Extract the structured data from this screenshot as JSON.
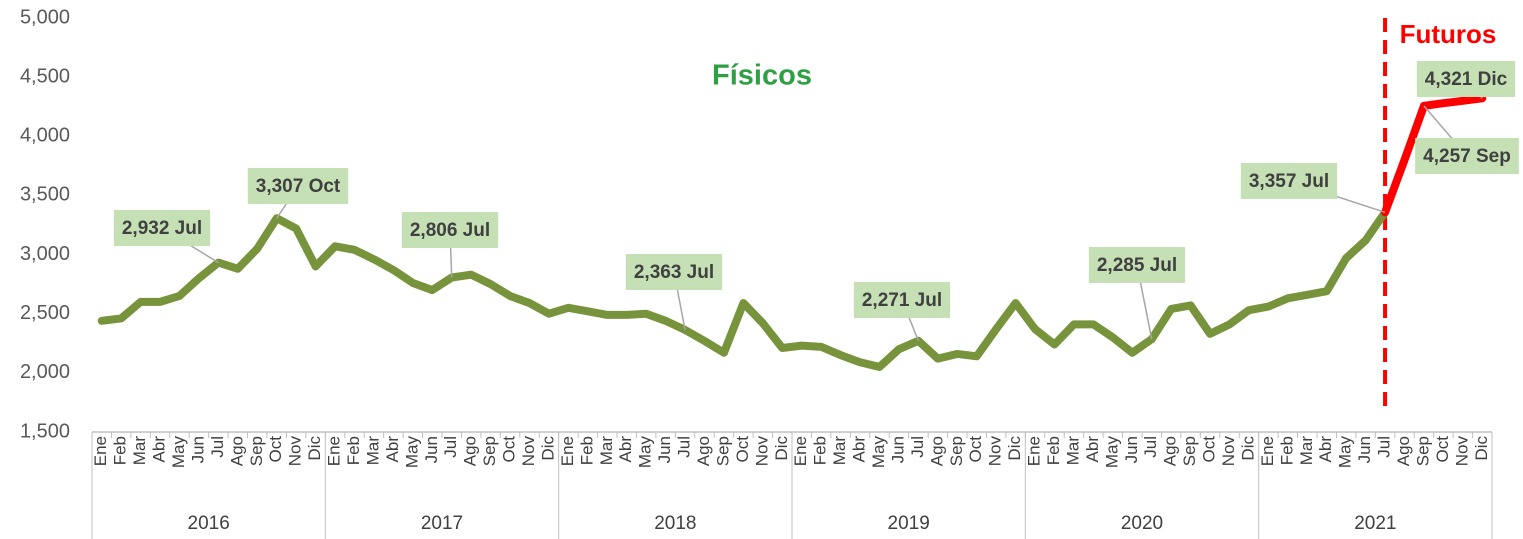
{
  "chart_data": {
    "type": "line",
    "categories": [
      "Ene",
      "Feb",
      "Mar",
      "Abr",
      "May",
      "Jun",
      "Jul",
      "Ago",
      "Sep",
      "Oct",
      "Nov",
      "Dic",
      "Ene",
      "Feb",
      "Mar",
      "Abr",
      "May",
      "Jun",
      "Jul",
      "Ago",
      "Sep",
      "Oct",
      "Nov",
      "Dic",
      "Ene",
      "Feb",
      "Mar",
      "Abr",
      "May",
      "Jun",
      "Jul",
      "Ago",
      "Sep",
      "Oct",
      "Nov",
      "Dic",
      "Ene",
      "Feb",
      "Mar",
      "Abr",
      "May",
      "Jun",
      "Jul",
      "Ago",
      "Sep",
      "Oct",
      "Nov",
      "Dic",
      "Ene",
      "Feb",
      "Mar",
      "Abr",
      "May",
      "Jun",
      "Jul",
      "Ago",
      "Sep",
      "Oct",
      "Nov",
      "Dic",
      "Ene",
      "Feb",
      "Mar",
      "Abr",
      "May",
      "Jun",
      "Jul",
      "Ago",
      "Sep",
      "Oct",
      "Nov",
      "Dic"
    ],
    "years": [
      "2016",
      "2017",
      "2018",
      "2019",
      "2020",
      "2021"
    ],
    "series": [
      {
        "name": "Físicos",
        "color": "#77933c",
        "values": [
          2440,
          2460,
          2600,
          2600,
          2650,
          2800,
          2932,
          2880,
          3050,
          3307,
          3220,
          2900,
          3070,
          3040,
          2960,
          2870,
          2760,
          2700,
          2806,
          2830,
          2750,
          2650,
          2590,
          2500,
          2550,
          2520,
          2490,
          2490,
          2500,
          2440,
          2363,
          2270,
          2170,
          2590,
          2420,
          2210,
          2230,
          2220,
          2150,
          2090,
          2050,
          2200,
          2271,
          2120,
          2160,
          2140,
          2370,
          2590,
          2370,
          2240,
          2410,
          2410,
          2300,
          2170,
          2285,
          2540,
          2570,
          2330,
          2410,
          2530,
          2560,
          2630,
          2660,
          2690,
          2970,
          3120,
          3357,
          null,
          null,
          null,
          null,
          null
        ],
        "value_labels": [
          null,
          null,
          null,
          null,
          null,
          null,
          "2,932 Jul",
          null,
          null,
          "3,307 Oct",
          null,
          null,
          null,
          null,
          null,
          null,
          null,
          null,
          "2,806 Jul",
          null,
          null,
          null,
          null,
          null,
          null,
          null,
          null,
          null,
          null,
          null,
          "2,363 Jul",
          null,
          null,
          null,
          null,
          null,
          null,
          null,
          null,
          null,
          null,
          null,
          "2,271 Jul",
          null,
          null,
          null,
          null,
          null,
          null,
          null,
          null,
          null,
          null,
          null,
          "2,285 Jul",
          null,
          null,
          null,
          null,
          null,
          null,
          null,
          null,
          null,
          null,
          null,
          "3,357 Jul",
          null,
          null,
          null,
          null,
          null
        ]
      },
      {
        "name": "Futuros",
        "color": "#ff0000",
        "values": [
          null,
          null,
          null,
          null,
          null,
          null,
          null,
          null,
          null,
          null,
          null,
          null,
          null,
          null,
          null,
          null,
          null,
          null,
          null,
          null,
          null,
          null,
          null,
          null,
          null,
          null,
          null,
          null,
          null,
          null,
          null,
          null,
          null,
          null,
          null,
          null,
          null,
          null,
          null,
          null,
          null,
          null,
          null,
          null,
          null,
          null,
          null,
          null,
          null,
          null,
          null,
          null,
          null,
          null,
          null,
          null,
          null,
          null,
          null,
          null,
          null,
          null,
          null,
          null,
          null,
          null,
          3357,
          3800,
          4257,
          4280,
          4300,
          4321
        ],
        "value_labels": [
          null,
          null,
          null,
          null,
          null,
          null,
          null,
          null,
          null,
          null,
          null,
          null,
          null,
          null,
          null,
          null,
          null,
          null,
          null,
          null,
          null,
          null,
          null,
          null,
          null,
          null,
          null,
          null,
          null,
          null,
          null,
          null,
          null,
          null,
          null,
          null,
          null,
          null,
          null,
          null,
          null,
          null,
          null,
          null,
          null,
          null,
          null,
          null,
          null,
          null,
          null,
          null,
          null,
          null,
          null,
          null,
          null,
          null,
          null,
          null,
          null,
          null,
          null,
          null,
          null,
          null,
          null,
          null,
          "4,257 Sep",
          null,
          null,
          "4,321 Dic"
        ]
      }
    ],
    "ylim": [
      1500,
      5000
    ],
    "yticks": [
      {
        "value": 1500,
        "label": "1,500"
      },
      {
        "value": 2000,
        "label": "2,000"
      },
      {
        "value": 2500,
        "label": "2,500"
      },
      {
        "value": 3000,
        "label": "3,000"
      },
      {
        "value": 3500,
        "label": "3,500"
      },
      {
        "value": 4000,
        "label": "4,000"
      },
      {
        "value": 4500,
        "label": "4,500"
      },
      {
        "value": 5000,
        "label": "5,000"
      }
    ],
    "grid": false
  }
}
